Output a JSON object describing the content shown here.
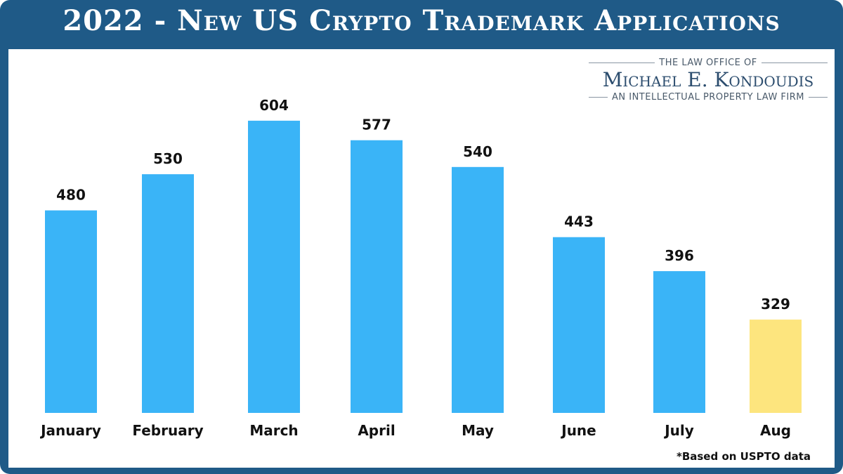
{
  "title": "2022 - New US Crypto Trademark Applications",
  "logo": {
    "line1": "THE LAW OFFICE OF",
    "line2": "Michael E. Kondoudis",
    "line3": "AN INTELLECTUAL PROPERTY LAW FIRM"
  },
  "footnote": "*Based on USPTO data",
  "chart_data": {
    "type": "bar",
    "title": "2022 - New US Crypto Trademark Applications",
    "categories": [
      "January",
      "February",
      "March",
      "April",
      "May",
      "June",
      "July",
      "Aug"
    ],
    "values": [
      480,
      530,
      604,
      577,
      540,
      443,
      396,
      329
    ],
    "colors": [
      "#3ab4f7",
      "#3ab4f7",
      "#3ab4f7",
      "#3ab4f7",
      "#3ab4f7",
      "#3ab4f7",
      "#3ab4f7",
      "#fde57e"
    ],
    "xlabel": "",
    "ylabel": "",
    "grid": false,
    "legend": "none",
    "data_labels": true
  }
}
